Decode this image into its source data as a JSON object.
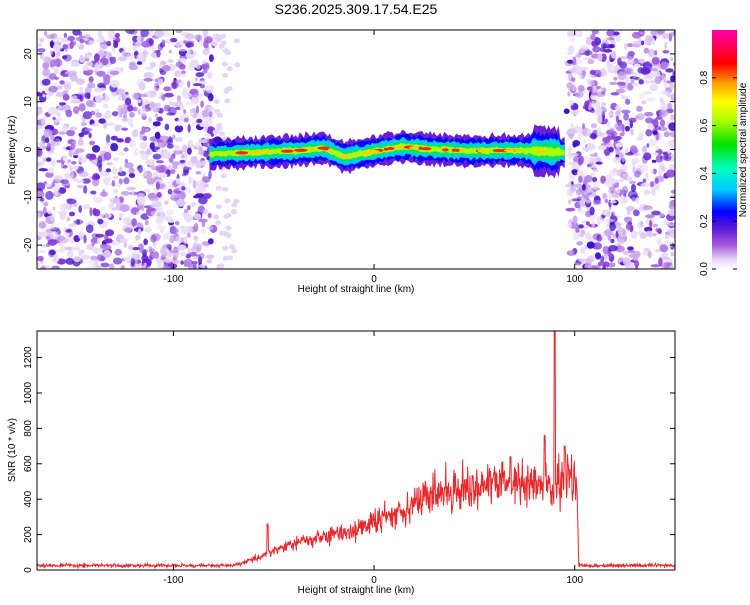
{
  "title": "S236.2025.309.17.54.E25",
  "chart_data": [
    {
      "type": "heatmap",
      "name": "spectrogram",
      "xlabel": "Height of straight line (km)",
      "ylabel": "Frequency (Hz)",
      "xlim": [
        -168,
        150
      ],
      "ylim": [
        -25,
        25
      ],
      "xticks": [
        -100,
        0,
        100
      ],
      "yticks": [
        -20,
        -10,
        0,
        10,
        20
      ],
      "colorbar": {
        "label": "Normalized spectral amplitude",
        "range": [
          0,
          1
        ],
        "ticks": [
          0.0,
          0.2,
          0.4,
          0.6,
          0.8
        ]
      },
      "signal_band": {
        "x_start": -82,
        "x_end": 95,
        "center_freq": 0,
        "band_centre_track": [
          [
            -82,
            -1
          ],
          [
            -60,
            -0.6
          ],
          [
            -40,
            -0.3
          ],
          [
            -25,
            0.3
          ],
          [
            -15,
            -1.5
          ],
          [
            -5,
            -0.8
          ],
          [
            5,
            0
          ],
          [
            15,
            0.6
          ],
          [
            30,
            0
          ],
          [
            50,
            -0.3
          ],
          [
            70,
            -0.2
          ],
          [
            85,
            -0.4
          ],
          [
            95,
            -0.6
          ]
        ]
      },
      "noise_regions": [
        [
          -168,
          -80
        ],
        [
          97,
          150
        ]
      ]
    },
    {
      "type": "line",
      "name": "snr",
      "xlabel": "Height of straight line (km)",
      "ylabel": "SNR (10 * v/v)",
      "xlim": [
        -168,
        150
      ],
      "ylim": [
        0,
        1350
      ],
      "xticks": [
        -100,
        0,
        100
      ],
      "yticks": [
        0,
        200,
        400,
        600,
        800,
        1000,
        1200
      ],
      "color": "#e8282a",
      "envelope": {
        "x": [
          -168,
          -70,
          -60,
          -50,
          -40,
          -30,
          -20,
          -10,
          0,
          10,
          20,
          30,
          40,
          50,
          60,
          70,
          80,
          85,
          90,
          95,
          100,
          101,
          102,
          150
        ],
        "y": [
          25,
          25,
          60,
          110,
          150,
          175,
          200,
          225,
          270,
          320,
          380,
          430,
          460,
          470,
          485,
          495,
          480,
          480,
          440,
          530,
          520,
          520,
          25,
          25
        ]
      },
      "peaks": [
        {
          "x": 90,
          "y": 1350
        },
        {
          "x": 85,
          "y": 760
        },
        {
          "x": 95,
          "y": 700
        },
        {
          "x": 68,
          "y": 640
        },
        {
          "x": -53,
          "y": 260
        }
      ]
    }
  ]
}
